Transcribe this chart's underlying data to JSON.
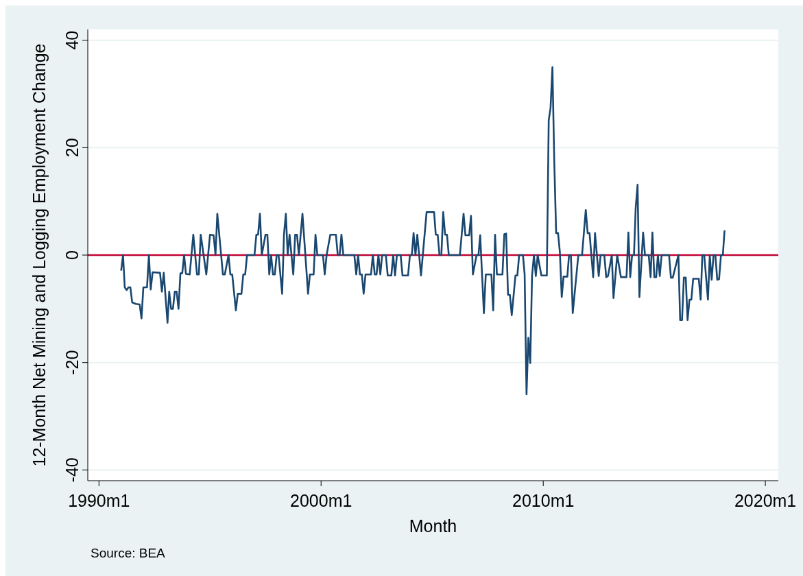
{
  "chart_data": {
    "type": "line",
    "xlabel": "Month",
    "ylabel": "12-Month Net Mining and Logging Employment Change",
    "annotations": [
      "Source: BEA"
    ],
    "xlim": [
      "1989-07",
      "2020-08"
    ],
    "xticks": [
      {
        "value": "1990-01",
        "label": "1990m1"
      },
      {
        "value": "2000-01",
        "label": "2000m1"
      },
      {
        "value": "2010-01",
        "label": "2010m1"
      },
      {
        "value": "2020-01",
        "label": "2020m1"
      }
    ],
    "ylim": [
      -42,
      42
    ],
    "yticks": [
      -40,
      -20,
      0,
      20,
      40
    ],
    "grid": "y",
    "ref_lines": [
      {
        "axis": "y",
        "value": 0,
        "color": "#c10534"
      }
    ],
    "x": [
      "1991-01",
      "1991-02",
      "1991-03",
      "1991-04",
      "1991-05",
      "1991-06",
      "1991-07",
      "1991-09",
      "1991-11",
      "1991-12",
      "1992-01",
      "1992-03",
      "1992-04",
      "1992-05",
      "1992-06",
      "1992-10",
      "1992-11",
      "1992-12",
      "1993-02",
      "1993-03",
      "1993-04",
      "1993-05",
      "1993-06",
      "1993-07",
      "1993-08",
      "1993-09",
      "1993-10",
      "1993-11",
      "1993-12",
      "1994-02",
      "1994-04",
      "1994-06",
      "1994-07",
      "1994-08",
      "1994-11",
      "1995-01",
      "1995-03",
      "1995-04",
      "1995-05",
      "1995-08",
      "1995-09",
      "1995-11",
      "1995-12",
      "1996-01",
      "1996-03",
      "1996-04",
      "1996-06",
      "1996-07",
      "1996-08",
      "1996-09",
      "1997-01",
      "1997-02",
      "1997-03",
      "1997-04",
      "1997-05",
      "1997-07",
      "1997-08",
      "1997-09",
      "1997-10",
      "1997-11",
      "1997-12",
      "1998-01",
      "1998-02",
      "1998-04",
      "1998-05",
      "1998-06",
      "1998-07",
      "1998-08",
      "1998-09",
      "1998-10",
      "1998-11",
      "1998-12",
      "1999-01",
      "1999-03",
      "1999-06",
      "1999-07",
      "1999-09",
      "1999-10",
      "1999-11",
      "2000-02",
      "2000-03",
      "2000-04",
      "2000-06",
      "2000-09",
      "2000-10",
      "2000-11",
      "2000-12",
      "2001-01",
      "2001-07",
      "2001-08",
      "2001-09",
      "2001-10",
      "2001-11",
      "2001-12",
      "2002-01",
      "2002-04",
      "2002-05",
      "2002-06",
      "2002-07",
      "2002-08",
      "2002-09",
      "2002-10",
      "2002-12",
      "2003-01",
      "2003-03",
      "2003-04",
      "2003-05",
      "2003-06",
      "2003-08",
      "2003-09",
      "2003-12",
      "2004-01",
      "2004-02",
      "2004-03",
      "2004-04",
      "2004-05",
      "2004-07",
      "2004-10",
      "2005-02",
      "2005-03",
      "2005-04",
      "2005-05",
      "2005-06",
      "2005-07",
      "2005-08",
      "2005-09",
      "2005-10",
      "2006-04",
      "2006-06",
      "2006-07",
      "2006-09",
      "2006-10",
      "2006-11",
      "2007-01",
      "2007-02",
      "2007-03",
      "2007-05",
      "2007-06",
      "2007-09",
      "2007-10",
      "2007-11",
      "2007-12",
      "2008-03",
      "2008-04",
      "2008-05",
      "2008-06",
      "2008-07",
      "2008-08",
      "2008-10",
      "2008-11",
      "2008-12",
      "2009-02",
      "2009-03",
      "2009-04",
      "2009-05",
      "2009-06",
      "2009-07",
      "2009-08",
      "2009-09",
      "2009-10",
      "2009-12",
      "2010-03",
      "2010-04",
      "2010-05",
      "2010-06",
      "2010-07",
      "2010-08",
      "2010-09",
      "2010-10",
      "2010-11",
      "2010-12",
      "2011-02",
      "2011-03",
      "2011-04",
      "2011-05",
      "2011-08",
      "2011-10",
      "2011-12",
      "2012-01",
      "2012-02",
      "2012-04",
      "2012-05",
      "2012-07",
      "2012-08",
      "2012-10",
      "2012-11",
      "2012-12",
      "2013-02",
      "2013-03",
      "2013-05",
      "2013-07",
      "2013-10",
      "2013-11",
      "2013-12",
      "2014-01",
      "2014-02",
      "2014-03",
      "2014-04",
      "2014-05",
      "2014-07",
      "2014-08",
      "2014-10",
      "2014-11",
      "2014-12",
      "2015-01",
      "2015-02",
      "2015-03",
      "2015-04",
      "2015-05",
      "2015-09",
      "2015-10",
      "2015-11",
      "2016-02",
      "2016-03",
      "2016-04",
      "2016-05",
      "2016-06",
      "2016-07",
      "2016-08",
      "2016-09",
      "2016-10",
      "2016-12",
      "2017-01",
      "2017-02",
      "2017-03",
      "2017-04",
      "2017-06",
      "2017-07",
      "2017-08",
      "2017-09",
      "2017-10",
      "2017-11",
      "2017-12",
      "2018-01",
      "2018-02",
      "2018-03"
    ],
    "series": [
      {
        "color": "#1a476f",
        "values": [
          -2.9,
          0,
          -6,
          -6.5,
          -6,
          -6,
          -8.8,
          -9.1,
          -9.2,
          -11.8,
          -6,
          -6,
          0,
          -6.4,
          -3.2,
          -3.3,
          -6.8,
          -3.3,
          -12.6,
          -6.8,
          -10,
          -10,
          -6.8,
          -6.8,
          -10,
          -3.4,
          -3.4,
          0,
          -3.5,
          -3.6,
          3.8,
          -3.6,
          -3.6,
          3.8,
          -3.6,
          3.8,
          3.7,
          0,
          7.7,
          -3.6,
          -3.6,
          0,
          -3.6,
          -3.6,
          -10.3,
          -7.2,
          -7.2,
          -3.6,
          -3.6,
          0,
          0,
          3.8,
          3.8,
          7.7,
          0,
          3.8,
          3.8,
          -3.6,
          0,
          -3.6,
          -3.6,
          0,
          0,
          -7.2,
          3.8,
          7.7,
          0,
          3.8,
          0,
          -3.6,
          3.8,
          3.8,
          0,
          7.7,
          -7.2,
          -3.6,
          -3.6,
          3.8,
          0,
          0,
          -3.6,
          0,
          3.8,
          3.8,
          0,
          0,
          3.8,
          0,
          0,
          -3.6,
          0,
          -3.6,
          -3.6,
          -7.2,
          -3.6,
          -3.6,
          0,
          -3.6,
          -3.6,
          0,
          -3.6,
          0,
          0,
          -3.8,
          -3.8,
          0,
          -3.8,
          0,
          0,
          -3.8,
          -3.8,
          0,
          0,
          4.1,
          0,
          3.8,
          -3.8,
          8,
          8,
          3.8,
          3.8,
          0,
          0,
          8,
          3.8,
          3.8,
          0,
          0,
          7.7,
          3.7,
          3.7,
          7.3,
          -3.6,
          0,
          0,
          3.7,
          -10.8,
          -3.6,
          -3.6,
          -10.3,
          3.8,
          -3.6,
          -3.6,
          3.9,
          4,
          -7.4,
          -7.4,
          -11.2,
          -3.8,
          -3.8,
          0,
          0,
          -3.6,
          -25.9,
          -15.4,
          -20.1,
          -3.8,
          0,
          -3.9,
          0,
          -3.8,
          -3.8,
          25.1,
          27.4,
          35,
          17.5,
          4.1,
          4.1,
          0.6,
          -7.8,
          -4,
          -4,
          0,
          0,
          -10.8,
          0,
          0,
          8.4,
          4.1,
          4.1,
          -4.1,
          4.1,
          -3.9,
          0,
          0,
          -4.1,
          -3.9,
          0,
          -8,
          0,
          -4.1,
          -4.1,
          4.2,
          -4.1,
          0,
          0,
          8.8,
          13.1,
          -7.8,
          4.2,
          0,
          0,
          -4.1,
          4.2,
          -4.1,
          -4.1,
          0,
          -3.9,
          0,
          0,
          -4.2,
          -4.2,
          0,
          -12.1,
          -12.1,
          -4.2,
          -4.2,
          -12.1,
          -8.3,
          -8.3,
          -4.4,
          -4.4,
          -4.4,
          -8.3,
          0,
          0,
          -8.3,
          0,
          -4.6,
          0,
          0,
          -4.6,
          -4.5,
          0,
          0,
          4.6
        ]
      }
    ]
  }
}
